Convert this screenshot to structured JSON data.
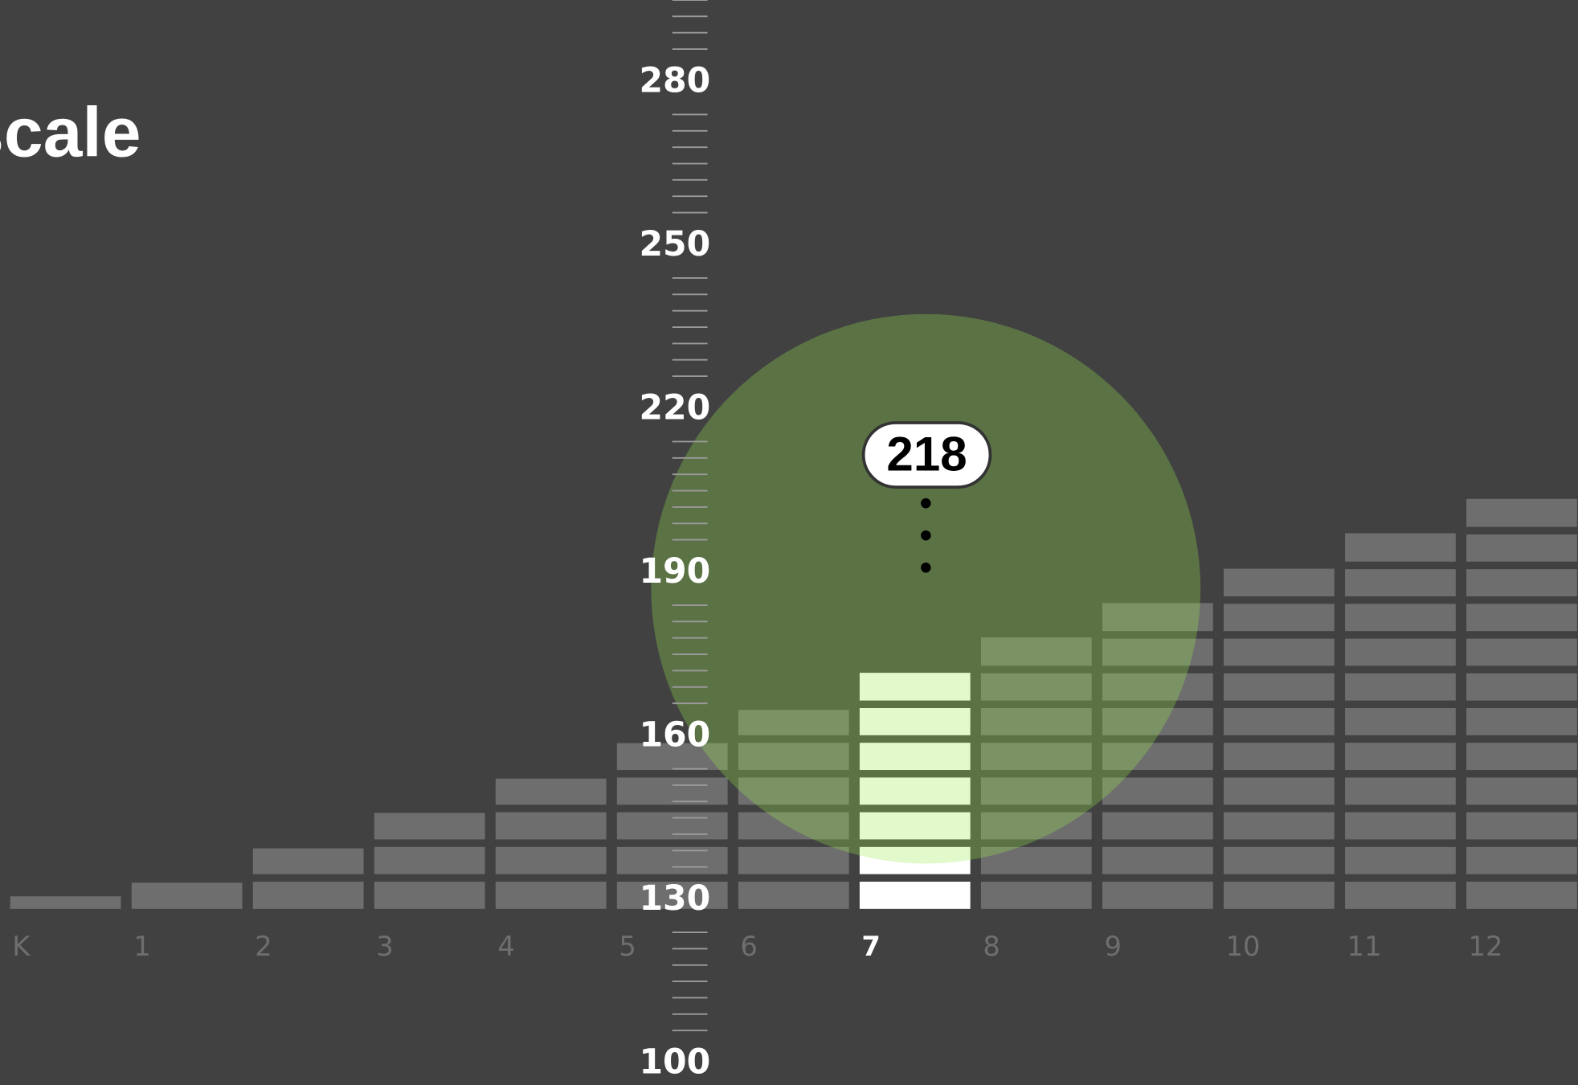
{
  "chart_data": {
    "type": "bar",
    "title": "scale",
    "categories": [
      "K",
      "1",
      "2",
      "3",
      "4",
      "5",
      "6",
      "7",
      "8",
      "9",
      "10",
      "11",
      "12"
    ],
    "values": [
      130.6,
      133.1,
      139.4,
      145.9,
      152.2,
      158.7,
      164.8,
      171.6,
      178.1,
      184.4,
      190.7,
      197.2,
      203.5
    ],
    "color": "#6e6e6e",
    "highlight_category": "7",
    "highlight_color": "#ffffff",
    "ylim": [
      96,
      295
    ],
    "yticks": [
      100,
      130,
      160,
      190,
      220,
      250,
      280
    ],
    "yticks_minor": [
      106,
      109,
      112,
      115,
      118,
      121,
      124,
      136,
      139,
      142,
      145,
      148,
      151,
      154,
      166,
      169,
      172,
      175,
      178,
      181,
      184,
      196,
      199,
      202,
      205,
      208,
      211,
      214,
      226,
      229,
      232,
      235,
      238,
      241,
      244,
      256,
      259,
      262,
      265,
      268,
      271,
      274,
      286,
      289,
      292,
      295
    ],
    "annotation": "218"
  }
}
